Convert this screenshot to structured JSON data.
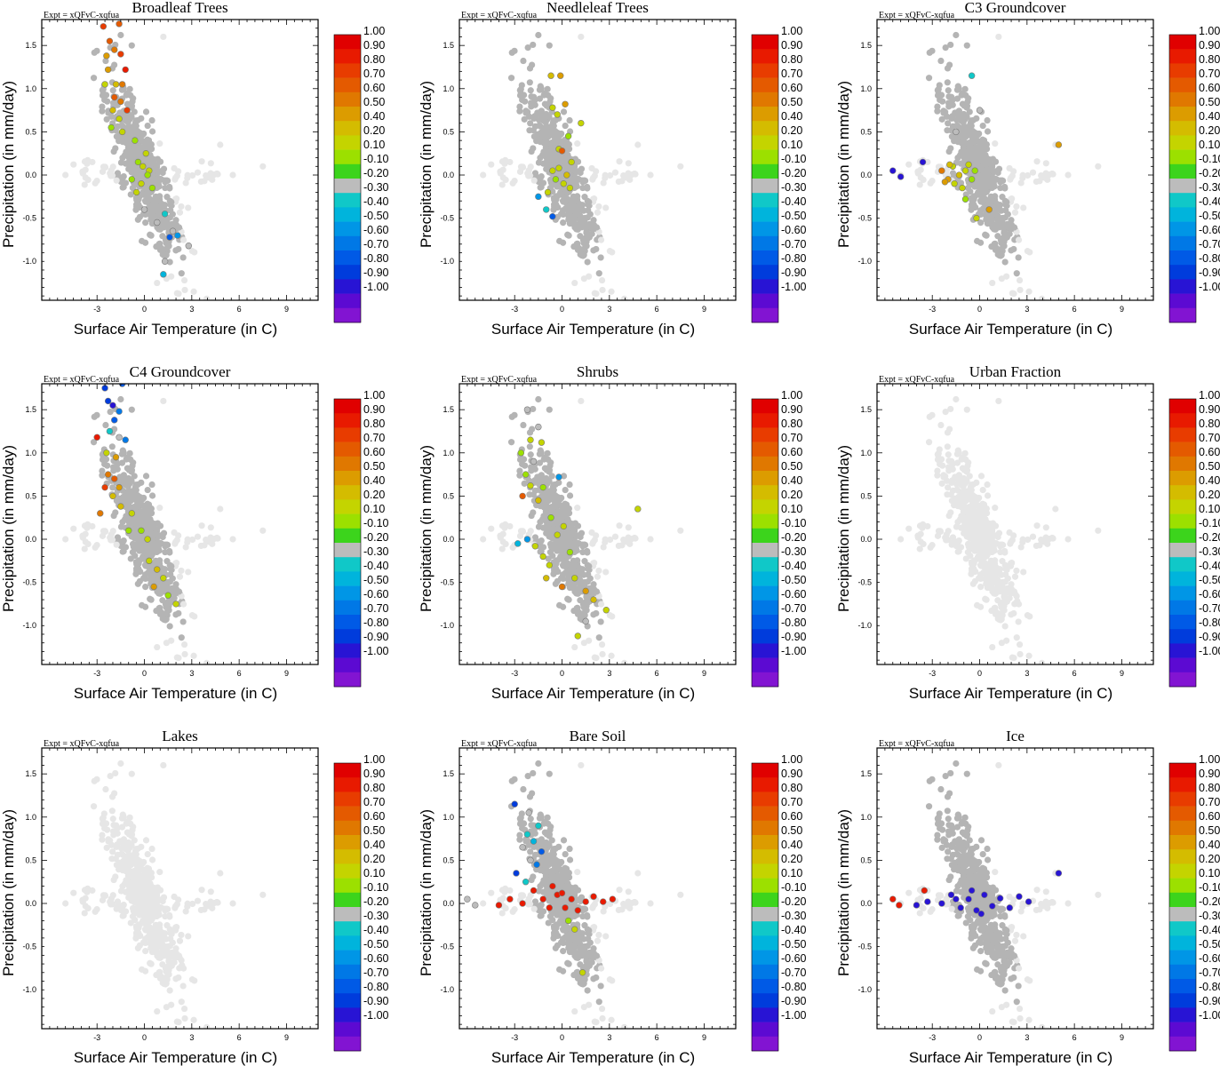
{
  "figure": {
    "xlabel": "Surface Air Temperature (in C)",
    "ylabel": "Precipitation (in mm/day)",
    "experiment_label": "Expt = xQFvC-xqfua",
    "xlim": [
      -6.5,
      11
    ],
    "ylim": [
      -1.45,
      1.8
    ],
    "x_ticks": [
      "-3",
      "0",
      "3",
      "6",
      "9"
    ],
    "y_ticks": [
      "1.5",
      "1.0",
      "0.5",
      "0.0",
      "-0.5",
      "-1.0"
    ],
    "colorbar_levels": [
      "1.00",
      "0.90",
      "0.80",
      "0.70",
      "0.60",
      "0.50",
      "0.40",
      "0.20",
      "0.10",
      "-0.10",
      "-0.20",
      "-0.30",
      "-0.40",
      "-0.50",
      "-0.60",
      "-0.70",
      "-0.80",
      "-0.90",
      "-1.00"
    ],
    "colorbar_colors": [
      "#e00000",
      "#e81a00",
      "#e83c00",
      "#e45a00",
      "#e07800",
      "#dc9c00",
      "#d4bc00",
      "#c4d400",
      "#9ce000",
      "#3cd41c",
      "#bcbcbc",
      "#10c8c8",
      "#00b4dc",
      "#0096e6",
      "#0078e6",
      "#005ae6",
      "#003cdc",
      "#2814d4",
      "#5c0ad2",
      "#8214d2"
    ],
    "background_color": "#e6e6e6",
    "neutral_color": "#b4b4b4"
  },
  "chart_data": [
    {
      "type": "scatter",
      "title": "Broadleaf Trees",
      "xlabel": "Surface Air Temperature (in C)",
      "ylabel": "Precipitation (in mm/day)",
      "xlim": [
        -6.5,
        11
      ],
      "ylim": [
        -1.45,
        1.8
      ],
      "colored_points": [
        {
          "x": -2.6,
          "y": 1.72,
          "v": 0.8
        },
        {
          "x": -1.6,
          "y": 1.75,
          "v": 0.7
        },
        {
          "x": -2.2,
          "y": 1.55,
          "v": 0.7
        },
        {
          "x": -1.9,
          "y": 1.45,
          "v": 0.6
        },
        {
          "x": -1.5,
          "y": 1.4,
          "v": 0.8
        },
        {
          "x": -2.4,
          "y": 1.38,
          "v": 0.5
        },
        {
          "x": -1.2,
          "y": 1.22,
          "v": 0.9
        },
        {
          "x": -2.3,
          "y": 1.22,
          "v": 0.5
        },
        {
          "x": -1.8,
          "y": 1.05,
          "v": 0.4
        },
        {
          "x": -1.4,
          "y": 1.05,
          "v": 0.6
        },
        {
          "x": -2.5,
          "y": 1.05,
          "v": 0.2
        },
        {
          "x": -1.9,
          "y": 0.9,
          "v": 0.7
        },
        {
          "x": -1.5,
          "y": 0.85,
          "v": 0.6
        },
        {
          "x": -1.1,
          "y": 0.75,
          "v": 0.8
        },
        {
          "x": -2.0,
          "y": 0.75,
          "v": 0.4
        },
        {
          "x": -1.6,
          "y": 0.65,
          "v": 0.3
        },
        {
          "x": -2.1,
          "y": 0.55,
          "v": 0.1
        },
        {
          "x": -1.4,
          "y": 0.5,
          "v": 0.2
        },
        {
          "x": -0.6,
          "y": 0.4,
          "v": 0.1
        },
        {
          "x": 0.1,
          "y": 0.25,
          "v": 0.2
        },
        {
          "x": -0.4,
          "y": 0.15,
          "v": 0.1
        },
        {
          "x": 0.3,
          "y": 0.05,
          "v": 0.2
        },
        {
          "x": -0.8,
          "y": -0.05,
          "v": 0.1
        },
        {
          "x": -0.2,
          "y": -0.1,
          "v": 0.3
        },
        {
          "x": 0.5,
          "y": -0.15,
          "v": 0.1
        },
        {
          "x": -0.5,
          "y": -0.2,
          "v": 0.2
        },
        {
          "x": 0.2,
          "y": 0.0,
          "v": 0.1
        },
        {
          "x": -0.1,
          "y": 0.1,
          "v": 0.2
        },
        {
          "x": 0.0,
          "y": -0.4,
          "v": -0.2
        },
        {
          "x": 0.8,
          "y": -0.55,
          "v": -0.2
        },
        {
          "x": 1.3,
          "y": -0.45,
          "v": -0.3
        },
        {
          "x": 1.8,
          "y": -0.65,
          "v": -0.2
        },
        {
          "x": 1.6,
          "y": -0.72,
          "v": -0.7
        },
        {
          "x": 2.1,
          "y": -0.7,
          "v": -0.5
        },
        {
          "x": 2.8,
          "y": -0.82,
          "v": -0.2
        },
        {
          "x": 1.3,
          "y": -1.0,
          "v": -0.2
        },
        {
          "x": 1.2,
          "y": -1.15,
          "v": -0.4
        }
      ]
    },
    {
      "type": "scatter",
      "title": "Needleleaf Trees",
      "xlabel": "Surface Air Temperature (in C)",
      "ylabel": "Precipitation (in mm/day)",
      "xlim": [
        -6.5,
        11
      ],
      "ylim": [
        -1.45,
        1.8
      ],
      "colored_points": [
        {
          "x": -0.7,
          "y": 1.15,
          "v": 0.4
        },
        {
          "x": -0.1,
          "y": 1.15,
          "v": 0.5
        },
        {
          "x": -0.6,
          "y": 0.78,
          "v": 0.3
        },
        {
          "x": -0.3,
          "y": 0.7,
          "v": 0.2
        },
        {
          "x": 0.2,
          "y": 0.82,
          "v": 0.5
        },
        {
          "x": 1.2,
          "y": 0.6,
          "v": 0.2
        },
        {
          "x": 0.4,
          "y": 0.45,
          "v": 0.1
        },
        {
          "x": -0.2,
          "y": 0.3,
          "v": 0.2
        },
        {
          "x": 0.0,
          "y": 0.28,
          "v": 0.7
        },
        {
          "x": 0.6,
          "y": 0.15,
          "v": 0.3
        },
        {
          "x": -0.6,
          "y": 0.05,
          "v": 0.2
        },
        {
          "x": 0.3,
          "y": 0.0,
          "v": 0.4
        },
        {
          "x": -0.4,
          "y": -0.05,
          "v": 0.1
        },
        {
          "x": 0.1,
          "y": -0.1,
          "v": 0.3
        },
        {
          "x": -0.9,
          "y": -0.2,
          "v": 0.2
        },
        {
          "x": 0.5,
          "y": -0.15,
          "v": 0.2
        },
        {
          "x": -0.2,
          "y": 0.08,
          "v": 0.3
        },
        {
          "x": -1.5,
          "y": -0.25,
          "v": -0.5
        },
        {
          "x": -1.0,
          "y": -0.4,
          "v": -0.3
        },
        {
          "x": -0.6,
          "y": -0.48,
          "v": -0.7
        }
      ]
    },
    {
      "type": "scatter",
      "title": "C3 Groundcover",
      "xlabel": "Surface Air Temperature (in C)",
      "ylabel": "Precipitation (in mm/day)",
      "xlim": [
        -6.5,
        11
      ],
      "ylim": [
        -1.45,
        1.8
      ],
      "colored_points": [
        {
          "x": -0.5,
          "y": 1.15,
          "v": -0.3
        },
        {
          "x": 0.0,
          "y": 0.75,
          "v": -0.2
        },
        {
          "x": -1.5,
          "y": 0.5,
          "v": -0.2
        },
        {
          "x": 5.0,
          "y": 0.35,
          "v": 0.5
        },
        {
          "x": -3.6,
          "y": 0.15,
          "v": -0.9
        },
        {
          "x": -5.5,
          "y": 0.05,
          "v": -0.9
        },
        {
          "x": -5.0,
          "y": -0.02,
          "v": -0.9
        },
        {
          "x": -2.4,
          "y": 0.05,
          "v": 0.6
        },
        {
          "x": -2.0,
          "y": -0.05,
          "v": 0.5
        },
        {
          "x": -1.7,
          "y": 0.1,
          "v": 0.3
        },
        {
          "x": -1.3,
          "y": 0.0,
          "v": 0.4
        },
        {
          "x": -0.9,
          "y": 0.05,
          "v": 0.2
        },
        {
          "x": -0.5,
          "y": -0.05,
          "v": 0.1
        },
        {
          "x": -1.1,
          "y": -0.15,
          "v": 0.2
        },
        {
          "x": -1.6,
          "y": -0.1,
          "v": 0.3
        },
        {
          "x": -0.7,
          "y": 0.12,
          "v": 0.2
        },
        {
          "x": -1.9,
          "y": 0.12,
          "v": 0.4
        },
        {
          "x": -2.2,
          "y": -0.08,
          "v": 0.5
        },
        {
          "x": -0.3,
          "y": 0.05,
          "v": 0.1
        },
        {
          "x": -0.9,
          "y": -0.28,
          "v": 0.1
        },
        {
          "x": 0.6,
          "y": -0.4,
          "v": 0.5
        },
        {
          "x": -0.2,
          "y": -0.5,
          "v": 0.2
        }
      ]
    },
    {
      "type": "scatter",
      "title": "C4 Groundcover",
      "xlabel": "Surface Air Temperature (in C)",
      "ylabel": "Precipitation (in mm/day)",
      "xlim": [
        -6.5,
        11
      ],
      "ylim": [
        -1.45,
        1.8
      ],
      "colored_points": [
        {
          "x": -2.5,
          "y": 1.75,
          "v": -0.8
        },
        {
          "x": -1.4,
          "y": 1.8,
          "v": -0.7
        },
        {
          "x": -2.3,
          "y": 1.6,
          "v": -0.8
        },
        {
          "x": -2.0,
          "y": 1.55,
          "v": -0.9
        },
        {
          "x": -1.6,
          "y": 1.48,
          "v": -0.6
        },
        {
          "x": -1.9,
          "y": 1.38,
          "v": -0.7
        },
        {
          "x": -3.0,
          "y": 1.18,
          "v": 0.9
        },
        {
          "x": -2.2,
          "y": 1.25,
          "v": -0.3
        },
        {
          "x": -1.6,
          "y": 1.18,
          "v": -0.2
        },
        {
          "x": -1.2,
          "y": 1.15,
          "v": -0.6
        },
        {
          "x": -2.4,
          "y": 1.0,
          "v": 0.3
        },
        {
          "x": -1.8,
          "y": 0.95,
          "v": 0.5
        },
        {
          "x": -2.3,
          "y": 0.75,
          "v": 0.6
        },
        {
          "x": -1.9,
          "y": 0.7,
          "v": 0.7
        },
        {
          "x": -2.5,
          "y": 0.6,
          "v": 0.8
        },
        {
          "x": -1.6,
          "y": 0.6,
          "v": 0.5
        },
        {
          "x": -2.0,
          "y": 0.5,
          "v": 0.4
        },
        {
          "x": -2.8,
          "y": 0.3,
          "v": 0.6
        },
        {
          "x": -1.5,
          "y": 0.38,
          "v": 0.4
        },
        {
          "x": -0.8,
          "y": 0.3,
          "v": 0.2
        },
        {
          "x": -0.2,
          "y": 0.1,
          "v": 0.1
        },
        {
          "x": 0.2,
          "y": 0.0,
          "v": 0.2
        },
        {
          "x": -1.0,
          "y": 0.1,
          "v": 0.1
        },
        {
          "x": 0.3,
          "y": -0.25,
          "v": 0.3
        },
        {
          "x": 0.8,
          "y": -0.35,
          "v": 0.4
        },
        {
          "x": 1.2,
          "y": -0.45,
          "v": 0.2
        },
        {
          "x": 0.6,
          "y": -0.55,
          "v": 0.5
        },
        {
          "x": 1.5,
          "y": -0.65,
          "v": 0.1
        },
        {
          "x": 2.0,
          "y": -0.75,
          "v": 0.2
        }
      ]
    },
    {
      "type": "scatter",
      "title": "Shrubs",
      "xlabel": "Surface Air Temperature (in C)",
      "ylabel": "Precipitation (in mm/day)",
      "xlim": [
        -6.5,
        11
      ],
      "ylim": [
        -1.45,
        1.8
      ],
      "colored_points": [
        {
          "x": -2.2,
          "y": 1.5,
          "v": -0.2
        },
        {
          "x": -1.5,
          "y": 1.3,
          "v": -0.2
        },
        {
          "x": -2.0,
          "y": 1.15,
          "v": 0.2
        },
        {
          "x": -1.3,
          "y": 1.12,
          "v": 0.3
        },
        {
          "x": -2.6,
          "y": 1.0,
          "v": 0.1
        },
        {
          "x": -1.8,
          "y": 0.9,
          "v": -0.2
        },
        {
          "x": -2.3,
          "y": 0.75,
          "v": 0.1
        },
        {
          "x": -0.2,
          "y": 0.72,
          "v": -0.5
        },
        {
          "x": -2.0,
          "y": 0.62,
          "v": 0.2
        },
        {
          "x": -1.2,
          "y": 0.6,
          "v": 0.1
        },
        {
          "x": -2.5,
          "y": 0.5,
          "v": 0.7
        },
        {
          "x": -1.5,
          "y": 0.45,
          "v": 0.4
        },
        {
          "x": 4.8,
          "y": 0.35,
          "v": 0.2
        },
        {
          "x": -0.7,
          "y": 0.25,
          "v": 0.1
        },
        {
          "x": 0.1,
          "y": 0.15,
          "v": 0.2
        },
        {
          "x": -0.3,
          "y": 0.05,
          "v": 0.3
        },
        {
          "x": -2.8,
          "y": -0.05,
          "v": -0.4
        },
        {
          "x": -2.2,
          "y": 0.0,
          "v": -0.5
        },
        {
          "x": -1.7,
          "y": -0.08,
          "v": 0.2
        },
        {
          "x": -1.2,
          "y": -0.2,
          "v": 0.3
        },
        {
          "x": 0.5,
          "y": -0.15,
          "v": 0.1
        },
        {
          "x": -0.8,
          "y": -0.3,
          "v": 0.2
        },
        {
          "x": -1.0,
          "y": -0.45,
          "v": 0.4
        },
        {
          "x": 0.0,
          "y": -0.55,
          "v": 0.6
        },
        {
          "x": 0.8,
          "y": -0.45,
          "v": 0.3
        },
        {
          "x": 1.5,
          "y": -0.6,
          "v": 0.5
        },
        {
          "x": 2.0,
          "y": -0.7,
          "v": 0.4
        },
        {
          "x": 2.8,
          "y": -0.82,
          "v": 0.2
        },
        {
          "x": 1.5,
          "y": -0.95,
          "v": -0.2
        },
        {
          "x": 1.0,
          "y": -1.12,
          "v": 0.2
        }
      ]
    },
    {
      "type": "scatter",
      "title": "Urban Fraction",
      "xlabel": "Surface Air Temperature (in C)",
      "ylabel": "Precipitation (in mm/day)",
      "xlim": [
        -6.5,
        11
      ],
      "ylim": [
        -1.45,
        1.8
      ],
      "colored_points": []
    },
    {
      "type": "scatter",
      "title": "Lakes",
      "xlabel": "Surface Air Temperature (in C)",
      "ylabel": "Precipitation (in mm/day)",
      "xlim": [
        -6.5,
        11
      ],
      "ylim": [
        -1.45,
        1.8
      ],
      "colored_points": []
    },
    {
      "type": "scatter",
      "title": "Bare Soil",
      "xlabel": "Surface Air Temperature (in C)",
      "ylabel": "Precipitation (in mm/day)",
      "xlim": [
        -6.5,
        11
      ],
      "ylim": [
        -1.45,
        1.8
      ],
      "colored_points": [
        {
          "x": -3.0,
          "y": 1.15,
          "v": -0.8
        },
        {
          "x": -2.1,
          "y": 1.05,
          "v": -0.2
        },
        {
          "x": -1.5,
          "y": 0.9,
          "v": -0.3
        },
        {
          "x": -2.2,
          "y": 0.8,
          "v": -0.3
        },
        {
          "x": -1.8,
          "y": 0.72,
          "v": -0.4
        },
        {
          "x": -2.5,
          "y": 0.65,
          "v": -0.2
        },
        {
          "x": -1.3,
          "y": 0.6,
          "v": -0.7
        },
        {
          "x": -2.0,
          "y": 0.5,
          "v": -0.2
        },
        {
          "x": -1.6,
          "y": 0.45,
          "v": -0.6
        },
        {
          "x": -2.9,
          "y": 0.35,
          "v": -0.8
        },
        {
          "x": -2.3,
          "y": 0.25,
          "v": -0.3
        },
        {
          "x": -6.0,
          "y": 0.05,
          "v": -0.2
        },
        {
          "x": -5.5,
          "y": -0.02,
          "v": -0.2
        },
        {
          "x": -4.0,
          "y": -0.02,
          "v": 0.9
        },
        {
          "x": -3.3,
          "y": 0.05,
          "v": 0.9
        },
        {
          "x": -2.5,
          "y": 0.0,
          "v": 0.9
        },
        {
          "x": -1.8,
          "y": 0.15,
          "v": 0.9
        },
        {
          "x": -1.2,
          "y": 0.05,
          "v": 0.9
        },
        {
          "x": -0.8,
          "y": -0.05,
          "v": 0.9
        },
        {
          "x": -0.3,
          "y": 0.1,
          "v": 0.9
        },
        {
          "x": 0.2,
          "y": -0.05,
          "v": 0.9
        },
        {
          "x": 0.6,
          "y": 0.05,
          "v": 0.9
        },
        {
          "x": 1.0,
          "y": -0.08,
          "v": 0.9
        },
        {
          "x": 1.5,
          "y": 0.02,
          "v": 0.9
        },
        {
          "x": 2.0,
          "y": 0.08,
          "v": 0.9
        },
        {
          "x": 2.6,
          "y": 0.02,
          "v": 0.9
        },
        {
          "x": 3.2,
          "y": 0.05,
          "v": 0.9
        },
        {
          "x": -0.6,
          "y": 0.2,
          "v": 0.9
        },
        {
          "x": 0.0,
          "y": 0.12,
          "v": 0.9
        },
        {
          "x": 0.4,
          "y": -0.2,
          "v": 0.1
        },
        {
          "x": 0.8,
          "y": -0.3,
          "v": 0.2
        },
        {
          "x": 1.3,
          "y": -0.8,
          "v": 0.2
        }
      ]
    },
    {
      "type": "scatter",
      "title": "Ice",
      "xlabel": "Surface Air Temperature (in C)",
      "ylabel": "Precipitation (in mm/day)",
      "xlim": [
        -6.5,
        11
      ],
      "ylim": [
        -1.45,
        1.8
      ],
      "colored_points": [
        {
          "x": -5.5,
          "y": 0.05,
          "v": 0.9
        },
        {
          "x": -5.1,
          "y": -0.02,
          "v": 0.9
        },
        {
          "x": -3.5,
          "y": 0.15,
          "v": 0.9
        },
        {
          "x": 5.0,
          "y": 0.35,
          "v": -0.9
        },
        {
          "x": -4.0,
          "y": -0.02,
          "v": -0.9
        },
        {
          "x": -3.3,
          "y": 0.02,
          "v": -0.9
        },
        {
          "x": -2.4,
          "y": 0.0,
          "v": -0.9
        },
        {
          "x": -1.8,
          "y": 0.1,
          "v": -0.9
        },
        {
          "x": -1.2,
          "y": -0.05,
          "v": -0.9
        },
        {
          "x": -0.7,
          "y": 0.05,
          "v": -0.9
        },
        {
          "x": -0.2,
          "y": -0.08,
          "v": -0.9
        },
        {
          "x": 0.3,
          "y": 0.1,
          "v": -0.9
        },
        {
          "x": 0.8,
          "y": -0.03,
          "v": -0.9
        },
        {
          "x": 1.3,
          "y": 0.06,
          "v": -0.9
        },
        {
          "x": 1.9,
          "y": -0.05,
          "v": -0.9
        },
        {
          "x": 2.5,
          "y": 0.08,
          "v": -0.9
        },
        {
          "x": 3.1,
          "y": 0.02,
          "v": -0.9
        },
        {
          "x": -0.5,
          "y": 0.15,
          "v": -0.9
        },
        {
          "x": 0.1,
          "y": -0.12,
          "v": -0.9
        },
        {
          "x": -1.5,
          "y": 0.05,
          "v": -0.9
        }
      ]
    }
  ]
}
